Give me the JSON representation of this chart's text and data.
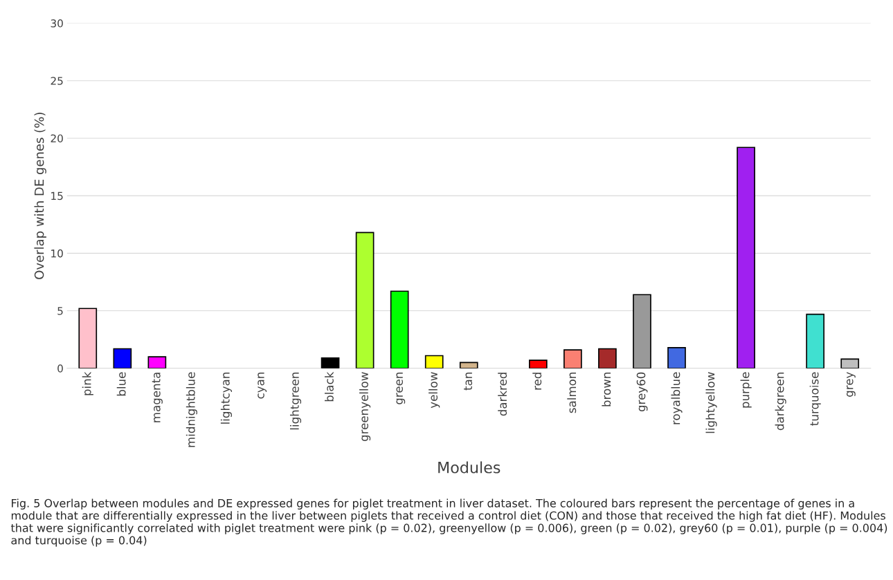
{
  "chart_data": {
    "type": "bar",
    "categories": [
      "pink",
      "blue",
      "magenta",
      "midnightblue",
      "lightcyan",
      "cyan",
      "lightgreen",
      "black",
      "greenyellow",
      "green",
      "yellow",
      "tan",
      "darkred",
      "red",
      "salmon",
      "brown",
      "grey60",
      "royalblue",
      "lightyellow",
      "purple",
      "darkgreen",
      "turquoise",
      "grey"
    ],
    "values": [
      5.2,
      1.7,
      1.0,
      0,
      0,
      0,
      0,
      0.9,
      11.8,
      6.7,
      1.1,
      0.5,
      0,
      0.7,
      1.6,
      1.7,
      6.4,
      1.8,
      0,
      19.2,
      0,
      4.7,
      0.8
    ],
    "colors": [
      "#ffc0cb",
      "#0000ff",
      "#ff00ff",
      null,
      null,
      null,
      null,
      "#000000",
      "#adff2f",
      "#00ff00",
      "#ffff00",
      "#d2b48c",
      null,
      "#ff0000",
      "#fa8072",
      "#a52a2a",
      "#999999",
      "#4169e1",
      null,
      "#a020f0",
      null,
      "#40e0d0",
      "#bebebe"
    ],
    "xlabel": "Modules",
    "ylabel": "Overlap with DE genes (%)",
    "ylim": [
      0,
      30
    ],
    "yticks": [
      0,
      5,
      10,
      15,
      20,
      25,
      30
    ],
    "grid": "y",
    "annotations": [
      "Fig. 5 Overlap between modules and DE expressed genes for piglet treatment in liver dataset. The coloured bars represent the percentage of genes in a module that are differentially expressed in the liver between piglets that received a control diet (CON) and those that received the high fat diet (HF). Modules that were significantly correlated with piglet treatment were pink (p = 0.02), greenyellow (p = 0.006), green (p = 0.02), grey60 (p = 0.01), purple (p = 0.004) and turquoise (p = 0.04)"
    ]
  }
}
